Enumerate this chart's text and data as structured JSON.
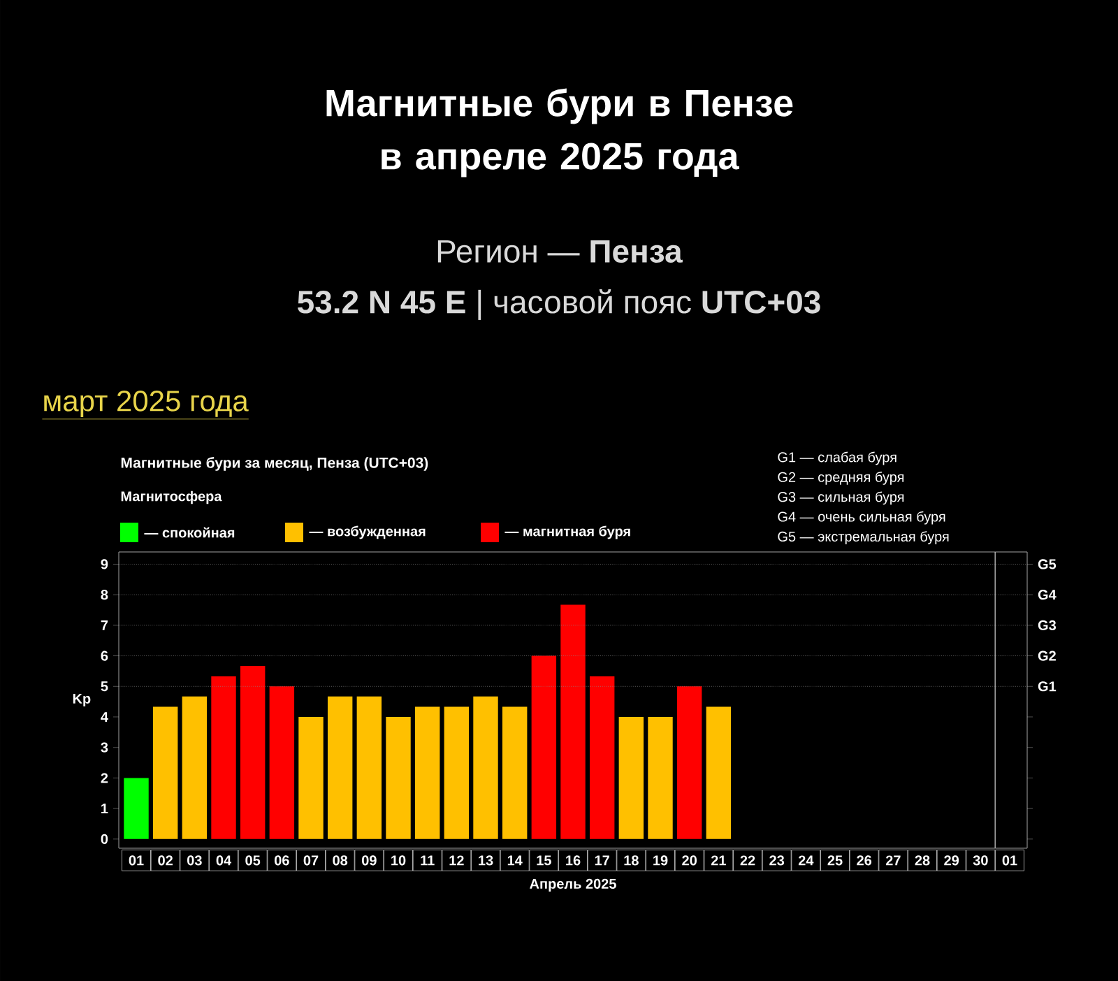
{
  "chart_data": {
    "type": "bar",
    "title": "Магнитные бури в Пензе в апреле 2025 года",
    "subtitle": "Регион — **Пенза**",
    "annotations": [
      "**53.2 N 45 E** | часовой пояс **UTC+03**",
      "март 2025 года",
      "Магнитные бури за месяц, Пенза (UTC+03)",
      "G1 — слабая буря",
      "G2 — средняя буря",
      "G3 — сильная буря",
      "G4 — очень сильная буря",
      "G5 — экстремальная буря"
    ],
    "xlabel": "Апрель 2025",
    "ylabel": "Kp",
    "legend_title": "Магнитосфера",
    "legend": "top left",
    "categories": [
      "01",
      "02",
      "03",
      "04",
      "05",
      "06",
      "07",
      "08",
      "09",
      "10",
      "11",
      "12",
      "13",
      "14",
      "15",
      "16",
      "17",
      "18",
      "19",
      "20",
      "21",
      "22",
      "23",
      "24",
      "25",
      "26",
      "27",
      "28",
      "29",
      "30",
      "01"
    ],
    "series": [
      {
        "name": "— спокойная",
        "color": "#00ff00",
        "values": [
          2,
          null,
          null,
          null,
          null,
          null,
          null,
          null,
          null,
          null,
          null,
          null,
          null,
          null,
          null,
          null,
          null,
          null,
          null,
          null,
          null,
          null,
          null,
          null,
          null,
          null,
          null,
          null,
          null,
          null,
          null
        ]
      },
      {
        "name": "— возбужденная",
        "color": "#ffc000",
        "values": [
          null,
          4.33,
          4.67,
          null,
          null,
          null,
          4,
          4.67,
          4.67,
          4,
          4.33,
          4.33,
          4.67,
          4.33,
          null,
          null,
          null,
          4,
          4,
          null,
          4.33,
          null,
          null,
          null,
          null,
          null,
          null,
          null,
          null,
          null,
          null
        ]
      },
      {
        "name": "— магнитная буря",
        "color": "#ff0000",
        "values": [
          null,
          null,
          null,
          5.33,
          5.67,
          5,
          null,
          null,
          null,
          null,
          null,
          null,
          null,
          null,
          6,
          7.67,
          5.33,
          null,
          null,
          5,
          null,
          null,
          null,
          null,
          null,
          null,
          null,
          null,
          null,
          null,
          null
        ]
      }
    ],
    "ylim": [
      -0.3,
      9.4
    ],
    "yticks": [
      0,
      1,
      2,
      3,
      4,
      5,
      6,
      7,
      8,
      9
    ],
    "ref_lines": [
      {
        "axis": "y",
        "value": 5,
        "label": "G1",
        "color": "#8a8a8a",
        "line_style": "dotted"
      },
      {
        "axis": "y",
        "value": 6,
        "label": "G2",
        "color": "#8a8a8a",
        "line_style": "dotted"
      },
      {
        "axis": "y",
        "value": 7,
        "label": "G3",
        "color": "#8a8a8a",
        "line_style": "dotted"
      },
      {
        "axis": "y",
        "value": 8,
        "label": "G4",
        "color": "#8a8a8a",
        "line_style": "dotted"
      },
      {
        "axis": "y",
        "value": 9,
        "label": "G5",
        "color": "#8a8a8a",
        "line_style": "dotted"
      }
    ]
  }
}
